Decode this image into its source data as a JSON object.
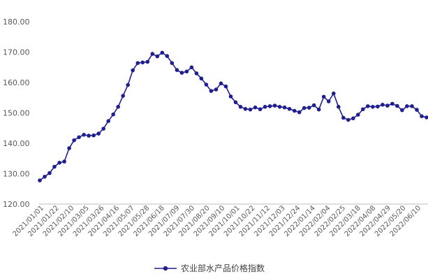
{
  "chart_data": {
    "type": "line",
    "title": "",
    "xlabel": "",
    "ylabel": "",
    "ylim": [
      120,
      180
    ],
    "yticks": [
      "120.00",
      "130.00",
      "140.00",
      "150.00",
      "160.00",
      "170.00",
      "180.00"
    ],
    "grid": false,
    "legend_position": "bottom",
    "color": "#1f1f8f",
    "x_tick_labels": [
      "2021/01/01",
      "2021/01/22",
      "2021/02/10",
      "2021/03/05",
      "2021/03/26",
      "2021/04/16",
      "2021/05/07",
      "2021/05/28",
      "2021/06/18",
      "2021/07/09",
      "2021/07/30",
      "2021/08/20",
      "2021/09/10",
      "2021/10/01",
      "2021/10/22",
      "2021/11/12",
      "2021/12/03",
      "2021/12/24",
      "2022/01/14",
      "2022/02/04",
      "2022/02/25",
      "2022/03/18",
      "2022/04/08",
      "2022/04/29",
      "2022/05/20",
      "2022/06/10"
    ],
    "series": [
      {
        "name": "农业部水产品价格指数",
        "values": [
          127.8,
          129.0,
          130.2,
          132.3,
          133.6,
          134.0,
          138.4,
          141.0,
          142.0,
          142.8,
          142.5,
          142.6,
          143.2,
          144.8,
          147.3,
          149.5,
          152.0,
          155.6,
          159.2,
          164.0,
          166.4,
          166.6,
          166.8,
          169.4,
          168.6,
          169.8,
          168.7,
          166.4,
          164.1,
          163.2,
          163.6,
          165.0,
          163.0,
          161.3,
          159.3,
          157.2,
          157.7,
          159.7,
          158.7,
          155.4,
          153.5,
          152.0,
          151.3,
          151.1,
          151.8,
          151.2,
          152.0,
          152.2,
          152.4,
          152.0,
          151.8,
          151.3,
          150.7,
          150.2,
          151.6,
          151.7,
          152.5,
          151.1,
          155.3,
          153.8,
          156.4,
          152.0,
          148.4,
          147.7,
          148.2,
          149.4,
          151.2,
          152.2,
          152.0,
          152.1,
          152.7,
          152.4,
          153.0,
          152.3,
          150.9,
          152.2,
          152.2,
          151.0,
          148.9,
          148.5
        ]
      }
    ]
  }
}
